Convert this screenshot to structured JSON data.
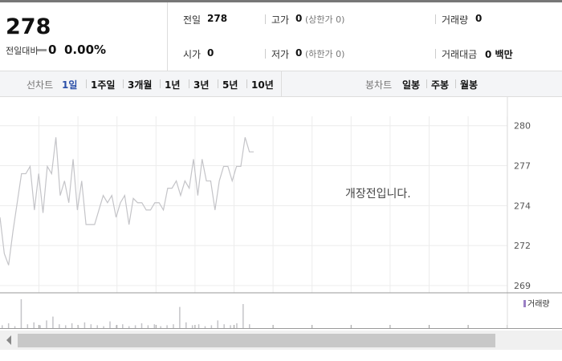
{
  "quote": {
    "price": "278",
    "change_label": "전일대비",
    "change": "0",
    "change_rate": "0.00%",
    "rows": [
      [
        {
          "label": "전일",
          "value": "278"
        },
        {
          "label": "고가",
          "value": "0",
          "note": "(상한가 0)"
        },
        {
          "label": "거래량",
          "value": "0"
        }
      ],
      [
        {
          "label": "시가",
          "value": "0"
        },
        {
          "label": "저가",
          "value": "0",
          "note": "(하한가 0)"
        },
        {
          "label": "거래대금",
          "value": "0 백만"
        }
      ]
    ]
  },
  "tabs": {
    "line_label": "선차트",
    "line_items": [
      "1일",
      "1주일",
      "3개월",
      "1년",
      "3년",
      "5년",
      "10년"
    ],
    "candle_label": "봉차트",
    "candle_items": [
      "일봉",
      "주봉",
      "월봉"
    ]
  },
  "chart_data": {
    "type": "line",
    "annotation": "개장전입니다.",
    "ylim": [
      268.3,
      281.0
    ],
    "yticks": [
      {
        "value": 279.8,
        "label": "280"
      },
      {
        "value": 277.05,
        "label": "277"
      },
      {
        "value": 274.3,
        "label": "274"
      },
      {
        "value": 271.55,
        "label": "272"
      },
      {
        "value": 268.8,
        "label": "269"
      }
    ],
    "series": [
      {
        "name": "가격",
        "color": "#c4c4c8",
        "values": [
          273.5,
          271,
          270.2,
          272.5,
          274.5,
          276.5,
          276.5,
          277,
          274,
          276.5,
          273.8,
          277,
          276.5,
          279,
          275,
          276,
          274.5,
          277.5,
          274,
          276,
          273,
          273,
          273,
          274,
          275,
          274.5,
          275,
          273.5,
          274.5,
          275,
          273,
          274.8,
          274.5,
          274.5,
          274,
          274,
          274.5,
          274.5,
          274,
          275.5,
          275.5,
          276,
          275,
          276,
          275.5,
          277.5,
          275,
          277.5,
          276,
          276,
          274,
          276,
          277,
          277,
          276,
          277,
          277,
          279,
          278,
          278
        ]
      }
    ],
    "volume": {
      "name": "거래량",
      "color": "#c4c4c8",
      "values": [
        3,
        5,
        2,
        30,
        4,
        6,
        3,
        8,
        12,
        4,
        3,
        5,
        2,
        6,
        4,
        3,
        2,
        7,
        3,
        4,
        2,
        3,
        5,
        3,
        4,
        2,
        3,
        4,
        22,
        6,
        3,
        4,
        2,
        3,
        8,
        4,
        3,
        5,
        25,
        4
      ]
    }
  }
}
